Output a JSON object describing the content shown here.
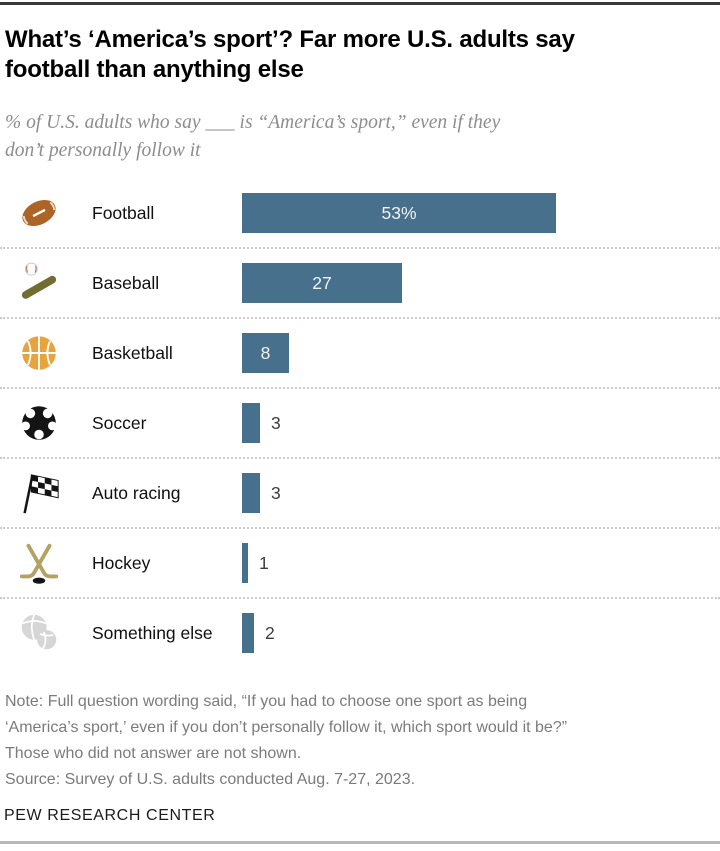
{
  "header": {
    "title_lines": [
      "What’s ‘America’s sport’? Far more U.S. adults say",
      "football than anything else"
    ],
    "subtitle_lines": [
      "% of U.S. adults who say ___ is “America’s sport,” even if they",
      "don’t personally follow it"
    ]
  },
  "chart_data": {
    "type": "bar",
    "orientation": "horizontal",
    "title": "What’s ‘America’s sport’? Far more U.S. adults say football than anything else",
    "subtitle": "% of U.S. adults who say ___ is “America’s sport,” even if they don’t personally follow it",
    "categories": [
      "Football",
      "Baseball",
      "Basketball",
      "Soccer",
      "Auto racing",
      "Hockey",
      "Something else"
    ],
    "values": [
      53,
      27,
      8,
      3,
      3,
      1,
      2
    ],
    "value_labels": [
      "53%",
      "27",
      "8",
      "3",
      "3",
      "1",
      "2"
    ],
    "icons": [
      "football-icon",
      "baseball-icon",
      "basketball-icon",
      "soccer-icon",
      "auto-racing-icon",
      "hockey-icon",
      "something-else-icon"
    ],
    "xlim": [
      0,
      80
    ],
    "grid": "off",
    "legend": "none"
  },
  "footer": {
    "note_lines": [
      "Note: Full question wording said, “If you had to choose one sport as being",
      "‘America’s sport,’ even if you don’t personally follow it, which sport would it be?”",
      "Those who did not answer are not shown."
    ],
    "source": "Source: Survey of U.S. adults conducted Aug. 7-27, 2023.",
    "branding": "PEW RESEARCH CENTER"
  },
  "colors": {
    "bar": "#47708C",
    "value_inside_text": "#F2F2F2",
    "value_outside_text": "#3D3D3D",
    "football": "#AC6427",
    "baseball_bat": "#716D31",
    "basketball": "#E8A33D",
    "soccer": "#141414",
    "racing_flag": "#141414",
    "hockey_stick": "#B3A264",
    "something_else": "#D6D6D6",
    "separator_dots": "#CBCBCB",
    "top_rule": "#3A3A3A",
    "bottom_rule": "#B7B7B7"
  }
}
